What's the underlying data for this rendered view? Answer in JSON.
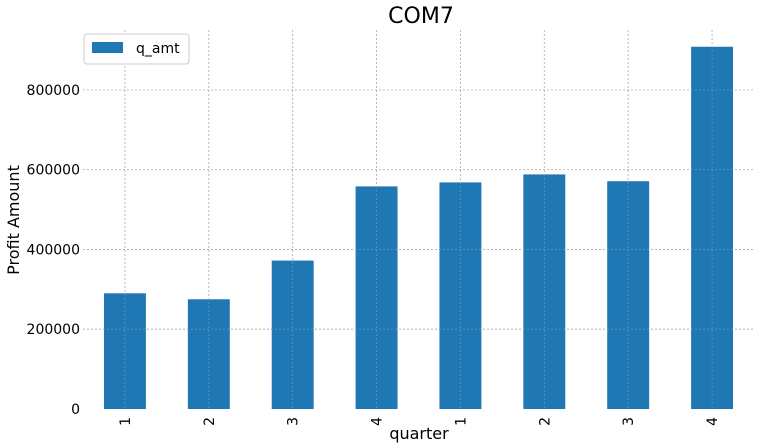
{
  "chart_data": {
    "type": "bar",
    "title": "COM7",
    "xlabel": "quarter",
    "ylabel": "Profit Amount",
    "categories": [
      "1",
      "2",
      "3",
      "4",
      "1",
      "2",
      "3",
      "4"
    ],
    "series": [
      {
        "name": "q_amt",
        "color": "#1f77b4",
        "values": [
          290000,
          275000,
          372000,
          558000,
          568000,
          588000,
          571000,
          908000
        ]
      }
    ],
    "ylim": [
      0,
      950000
    ],
    "yticks": [
      0,
      200000,
      400000,
      600000,
      800000
    ],
    "ytick_labels": [
      "0",
      "200000",
      "400000",
      "600000",
      "800000"
    ],
    "grid": true,
    "legend_position": "top-left"
  }
}
